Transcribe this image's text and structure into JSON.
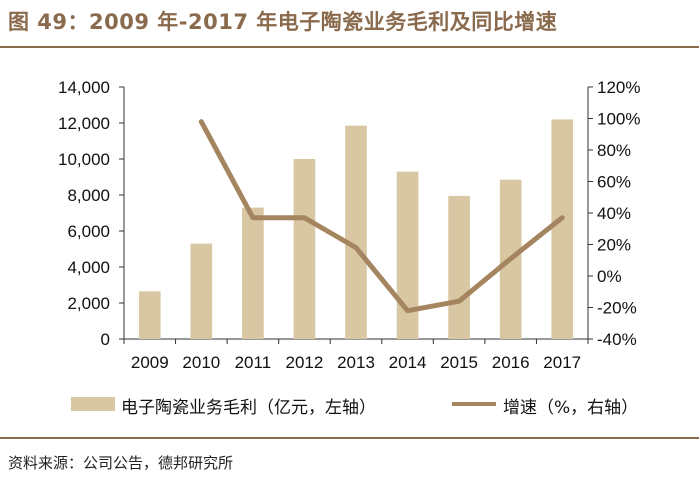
{
  "header": {
    "title": "图 49：2009 年-2017 年电子陶瓷业务毛利及同比增速"
  },
  "footer": {
    "source": "资料来源：公司公告，德邦研究所"
  },
  "colors": {
    "accent": "#8a6a4c",
    "bar": "#d8c7a2",
    "line": "#a58560"
  },
  "chart_data": {
    "type": "bar",
    "categories": [
      "2009",
      "2010",
      "2011",
      "2012",
      "2013",
      "2014",
      "2015",
      "2016",
      "2017"
    ],
    "series": [
      {
        "name": "电子陶瓷业务毛利（亿元，左轴）",
        "type": "bar",
        "axis": "left",
        "values": [
          2650,
          5300,
          7300,
          10000,
          11850,
          9300,
          7950,
          8850,
          12200
        ]
      },
      {
        "name": "增速（%，右轴）",
        "type": "line",
        "axis": "right",
        "values": [
          null,
          98,
          37,
          37,
          18,
          -22,
          -16,
          11,
          37
        ]
      }
    ],
    "y_left": {
      "min": 0,
      "max": 14000,
      "step": 2000,
      "tick_labels": [
        "0",
        "2,000",
        "4,000",
        "6,000",
        "8,000",
        "10,000",
        "12,000",
        "14,000"
      ]
    },
    "y_right": {
      "min": -40,
      "max": 120,
      "step": 20,
      "tick_labels": [
        "-40%",
        "-20%",
        "0%",
        "20%",
        "40%",
        "60%",
        "80%",
        "100%",
        "120%"
      ]
    },
    "grid": false,
    "legend": "bottom"
  }
}
